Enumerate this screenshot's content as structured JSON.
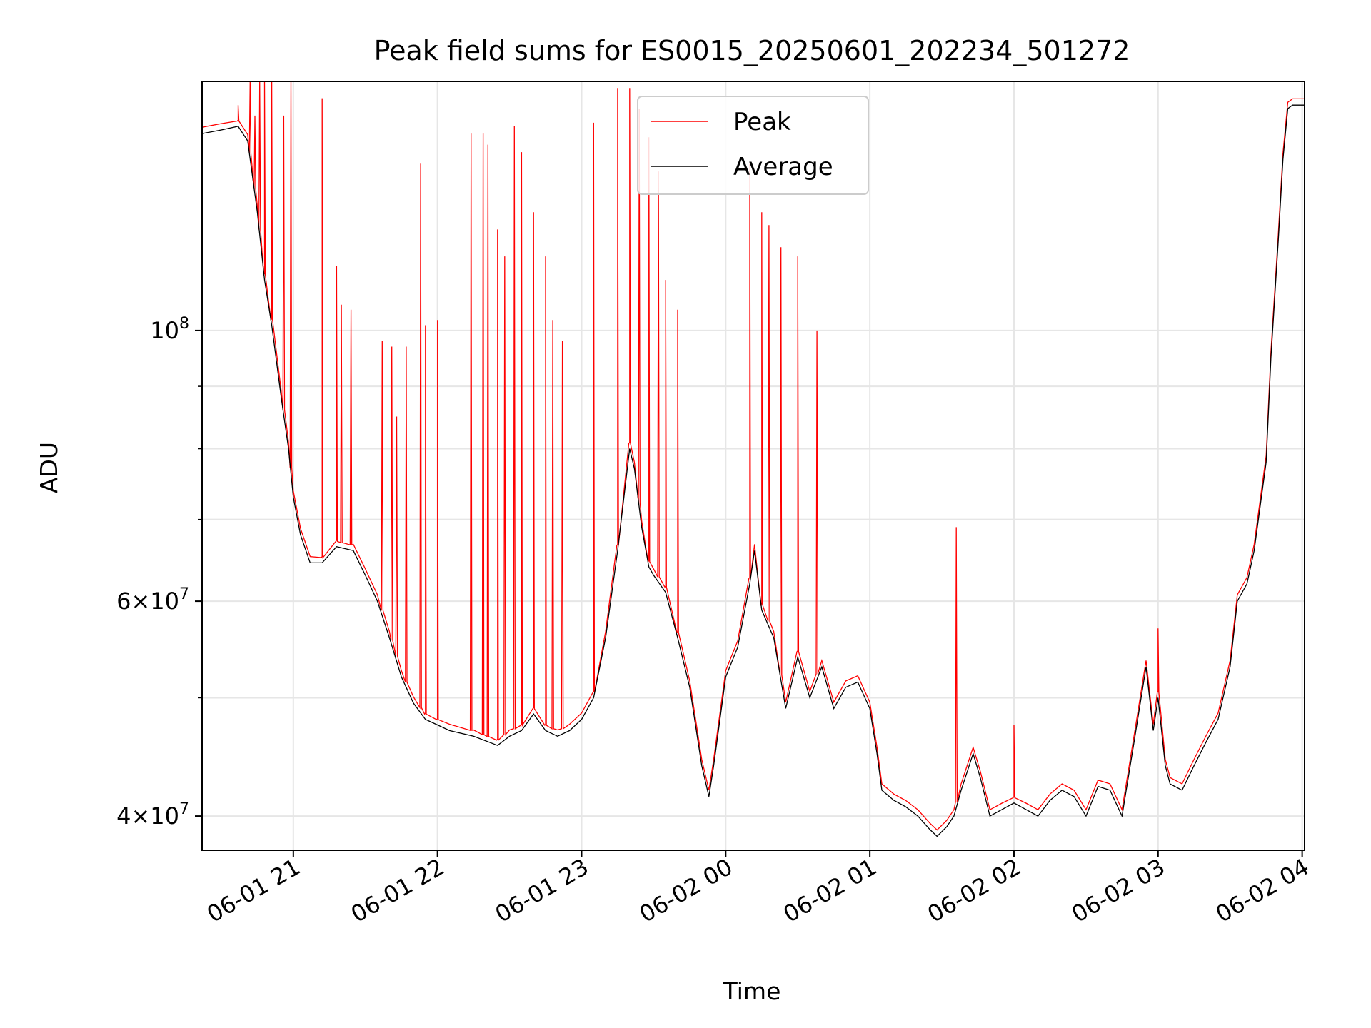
{
  "chart_data": {
    "type": "line",
    "title": "Peak field sums for ES0015_20250601_202234_501272",
    "xlabel": "Time",
    "ylabel": "ADU",
    "x_unit": "time (2025-06-01 / 2025-06-02)",
    "xlim": [
      "2025-06-01 20:22",
      "2025-06-02 04:01"
    ],
    "ylim": [
      37500000,
      160000000
    ],
    "yscale": "log",
    "grid": true,
    "legend_position": "top-center",
    "x_ticks": [
      {
        "value": "2025-06-01 21:00",
        "label": "06-01 21"
      },
      {
        "value": "2025-06-01 22:00",
        "label": "06-01 22"
      },
      {
        "value": "2025-06-01 23:00",
        "label": "06-01 23"
      },
      {
        "value": "2025-06-02 00:00",
        "label": "06-02 00"
      },
      {
        "value": "2025-06-02 01:00",
        "label": "06-02 01"
      },
      {
        "value": "2025-06-02 02:00",
        "label": "06-02 02"
      },
      {
        "value": "2025-06-02 03:00",
        "label": "06-02 03"
      },
      {
        "value": "2025-06-02 04:00",
        "label": "06-02 04"
      }
    ],
    "y_ticks": [
      {
        "value": 100000000,
        "base": "10",
        "exp": "8",
        "mant": ""
      },
      {
        "value": 60000000,
        "base": "10",
        "exp": "7",
        "mant": "6"
      },
      {
        "value": 40000000,
        "base": "10",
        "exp": "7",
        "mant": "4"
      }
    ],
    "y_minor_ticks": [
      50000000,
      70000000,
      80000000,
      90000000
    ],
    "average_points": [
      [
        "2025-06-01 20:22",
        145000000
      ],
      [
        "2025-06-01 20:30",
        146000000
      ],
      [
        "2025-06-01 20:37",
        147000000
      ],
      [
        "2025-06-01 20:41",
        143000000
      ],
      [
        "2025-06-01 20:45",
        125000000
      ],
      [
        "2025-06-01 20:48",
        110000000
      ],
      [
        "2025-06-01 20:51",
        101000000
      ],
      [
        "2025-06-01 20:55",
        88000000
      ],
      [
        "2025-06-01 20:58",
        80000000
      ],
      [
        "2025-06-01 21:00",
        73000000
      ],
      [
        "2025-06-01 21:03",
        68000000
      ],
      [
        "2025-06-01 21:07",
        64500000
      ],
      [
        "2025-06-01 21:12",
        64500000
      ],
      [
        "2025-06-01 21:18",
        66500000
      ],
      [
        "2025-06-01 21:25",
        66000000
      ],
      [
        "2025-06-01 21:30",
        63000000
      ],
      [
        "2025-06-01 21:35",
        60000000
      ],
      [
        "2025-06-01 21:40",
        56000000
      ],
      [
        "2025-06-01 21:45",
        52000000
      ],
      [
        "2025-06-01 21:50",
        49500000
      ],
      [
        "2025-06-01 21:55",
        48000000
      ],
      [
        "2025-06-01 22:00",
        47500000
      ],
      [
        "2025-06-01 22:05",
        47000000
      ],
      [
        "2025-06-01 22:15",
        46500000
      ],
      [
        "2025-06-01 22:25",
        45700000
      ],
      [
        "2025-06-01 22:30",
        46500000
      ],
      [
        "2025-06-01 22:35",
        47000000
      ],
      [
        "2025-06-01 22:40",
        48500000
      ],
      [
        "2025-06-01 22:45",
        47000000
      ],
      [
        "2025-06-01 22:50",
        46500000
      ],
      [
        "2025-06-01 22:55",
        47000000
      ],
      [
        "2025-06-01 23:00",
        48000000
      ],
      [
        "2025-06-01 23:05",
        50000000
      ],
      [
        "2025-06-01 23:10",
        56000000
      ],
      [
        "2025-06-01 23:15",
        66000000
      ],
      [
        "2025-06-01 23:20",
        80000000
      ],
      [
        "2025-06-01 23:22",
        77000000
      ],
      [
        "2025-06-01 23:25",
        69000000
      ],
      [
        "2025-06-01 23:28",
        64000000
      ],
      [
        "2025-06-01 23:30",
        63000000
      ],
      [
        "2025-06-01 23:35",
        61000000
      ],
      [
        "2025-06-01 23:40",
        56000000
      ],
      [
        "2025-06-01 23:45",
        51000000
      ],
      [
        "2025-06-01 23:50",
        44000000
      ],
      [
        "2025-06-01 23:53",
        41500000
      ],
      [
        "2025-06-01 23:55",
        44000000
      ],
      [
        "2025-06-02 00:00",
        52000000
      ],
      [
        "2025-06-02 00:05",
        55000000
      ],
      [
        "2025-06-02 00:10",
        62000000
      ],
      [
        "2025-06-02 00:12",
        66000000
      ],
      [
        "2025-06-02 00:15",
        59000000
      ],
      [
        "2025-06-02 00:20",
        56000000
      ],
      [
        "2025-06-02 00:25",
        49000000
      ],
      [
        "2025-06-02 00:30",
        54000000
      ],
      [
        "2025-06-02 00:35",
        50000000
      ],
      [
        "2025-06-02 00:40",
        53000000
      ],
      [
        "2025-06-02 00:45",
        49000000
      ],
      [
        "2025-06-02 00:50",
        51000000
      ],
      [
        "2025-06-02 00:55",
        51500000
      ],
      [
        "2025-06-02 01:00",
        49000000
      ],
      [
        "2025-06-02 01:03",
        45000000
      ],
      [
        "2025-06-02 01:05",
        42000000
      ],
      [
        "2025-06-02 01:10",
        41200000
      ],
      [
        "2025-06-02 01:15",
        40700000
      ],
      [
        "2025-06-02 01:20",
        40000000
      ],
      [
        "2025-06-02 01:25",
        39000000
      ],
      [
        "2025-06-02 01:28",
        38500000
      ],
      [
        "2025-06-02 01:32",
        39200000
      ],
      [
        "2025-06-02 01:35",
        40000000
      ],
      [
        "2025-06-02 01:38",
        42000000
      ],
      [
        "2025-06-02 01:43",
        45000000
      ],
      [
        "2025-06-02 01:46",
        43000000
      ],
      [
        "2025-06-02 01:50",
        40000000
      ],
      [
        "2025-06-02 01:55",
        40500000
      ],
      [
        "2025-06-02 02:00",
        41000000
      ],
      [
        "2025-06-02 02:05",
        40500000
      ],
      [
        "2025-06-02 02:10",
        40000000
      ],
      [
        "2025-06-02 02:15",
        41200000
      ],
      [
        "2025-06-02 02:20",
        42000000
      ],
      [
        "2025-06-02 02:25",
        41500000
      ],
      [
        "2025-06-02 02:30",
        40000000
      ],
      [
        "2025-06-02 02:35",
        42300000
      ],
      [
        "2025-06-02 02:40",
        42000000
      ],
      [
        "2025-06-02 02:45",
        40000000
      ],
      [
        "2025-06-02 02:50",
        46000000
      ],
      [
        "2025-06-02 02:55",
        53000000
      ],
      [
        "2025-06-02 02:58",
        47000000
      ],
      [
        "2025-06-02 03:00",
        50000000
      ],
      [
        "2025-06-02 03:03",
        44000000
      ],
      [
        "2025-06-02 03:05",
        42500000
      ],
      [
        "2025-06-02 03:10",
        42000000
      ],
      [
        "2025-06-02 03:15",
        44000000
      ],
      [
        "2025-06-02 03:20",
        46000000
      ],
      [
        "2025-06-02 03:25",
        48000000
      ],
      [
        "2025-06-02 03:30",
        53000000
      ],
      [
        "2025-06-02 03:33",
        60000000
      ],
      [
        "2025-06-02 03:37",
        62000000
      ],
      [
        "2025-06-02 03:40",
        66000000
      ],
      [
        "2025-06-02 03:45",
        78000000
      ],
      [
        "2025-06-02 03:47",
        95000000
      ],
      [
        "2025-06-02 03:50",
        118000000
      ],
      [
        "2025-06-02 03:52",
        138000000
      ],
      [
        "2025-06-02 03:54",
        152000000
      ],
      [
        "2025-06-02 03:56",
        153000000
      ],
      [
        "2025-06-02 04:01",
        153000000
      ]
    ],
    "peak_spikes": [
      [
        "2025-06-01 20:37",
        153000000
      ],
      [
        "2025-06-01 20:42",
        160000000
      ],
      [
        "2025-06-01 20:44",
        150000000
      ],
      [
        "2025-06-01 20:46",
        160000000
      ],
      [
        "2025-06-01 20:48",
        160000000
      ],
      [
        "2025-06-01 20:51",
        160000000
      ],
      [
        "2025-06-01 20:56",
        150000000
      ],
      [
        "2025-06-01 20:59",
        160000000
      ],
      [
        "2025-06-01 21:12",
        155000000
      ],
      [
        "2025-06-01 21:18",
        113000000
      ],
      [
        "2025-06-01 21:20",
        105000000
      ],
      [
        "2025-06-01 21:24",
        104000000
      ],
      [
        "2025-06-01 21:37",
        98000000
      ],
      [
        "2025-06-01 21:41",
        97000000
      ],
      [
        "2025-06-01 21:43",
        85000000
      ],
      [
        "2025-06-01 21:47",
        97000000
      ],
      [
        "2025-06-01 21:53",
        137000000
      ],
      [
        "2025-06-01 21:55",
        101000000
      ],
      [
        "2025-06-01 22:00",
        102000000
      ],
      [
        "2025-06-01 22:14",
        145000000
      ],
      [
        "2025-06-01 22:19",
        145000000
      ],
      [
        "2025-06-01 22:21",
        142000000
      ],
      [
        "2025-06-01 22:25",
        121000000
      ],
      [
        "2025-06-01 22:28",
        115000000
      ],
      [
        "2025-06-01 22:32",
        147000000
      ],
      [
        "2025-06-01 22:35",
        140000000
      ],
      [
        "2025-06-01 22:40",
        125000000
      ],
      [
        "2025-06-01 22:45",
        115000000
      ],
      [
        "2025-06-01 22:48",
        102000000
      ],
      [
        "2025-06-01 22:52",
        98000000
      ],
      [
        "2025-06-01 23:05",
        148000000
      ],
      [
        "2025-06-01 23:15",
        158000000
      ],
      [
        "2025-06-01 23:20",
        158000000
      ],
      [
        "2025-06-01 23:24",
        152000000
      ],
      [
        "2025-06-01 23:28",
        144000000
      ],
      [
        "2025-06-01 23:32",
        135000000
      ],
      [
        "2025-06-01 23:35",
        110000000
      ],
      [
        "2025-06-01 23:40",
        104000000
      ],
      [
        "2025-06-02 00:10",
        137000000
      ],
      [
        "2025-06-02 00:15",
        125000000
      ],
      [
        "2025-06-02 00:18",
        122000000
      ],
      [
        "2025-06-02 00:23",
        117000000
      ],
      [
        "2025-06-02 00:30",
        115000000
      ],
      [
        "2025-06-02 00:38",
        100000000
      ],
      [
        "2025-06-02 01:36",
        69000000
      ],
      [
        "2025-06-02 02:00",
        47500000
      ],
      [
        "2025-06-02 03:00",
        57000000
      ]
    ]
  },
  "legend": [
    {
      "label": "Peak",
      "color": "#ff0000"
    },
    {
      "label": "Average",
      "color": "#000000"
    }
  ]
}
